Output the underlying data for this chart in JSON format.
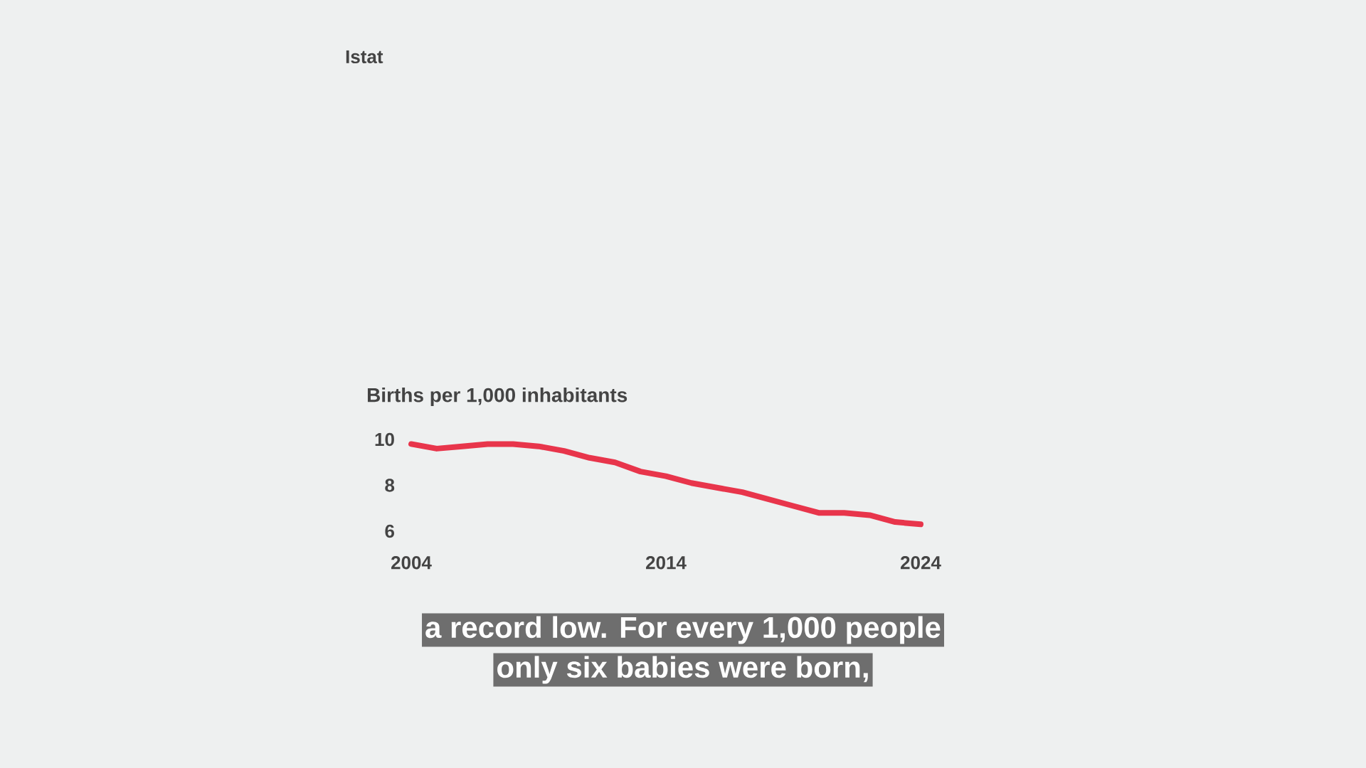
{
  "chart_data": {
    "type": "line",
    "title": "Births per 1,000 inhabitants",
    "x": [
      2004,
      2005,
      2006,
      2007,
      2008,
      2009,
      2010,
      2011,
      2012,
      2013,
      2014,
      2015,
      2016,
      2017,
      2018,
      2019,
      2020,
      2021,
      2022,
      2023,
      2024
    ],
    "series": [
      {
        "color": "#e8354b",
        "values": [
          9.8,
          9.6,
          9.7,
          9.8,
          9.8,
          9.7,
          9.5,
          9.2,
          9.0,
          8.6,
          8.4,
          8.1,
          7.9,
          7.7,
          7.4,
          7.1,
          6.8,
          6.8,
          6.7,
          6.4,
          6.3
        ]
      }
    ],
    "xlim": [
      2004,
      2024
    ],
    "ylim": [
      6,
      10
    ],
    "xticks": [
      2004,
      2014,
      2024
    ],
    "yticks": [
      6,
      8,
      10
    ],
    "line_style": "solid",
    "marker": "none",
    "annotations": [
      "Istat",
      "a record low. For every 1,000 people",
      "only six babies were born,"
    ]
  }
}
